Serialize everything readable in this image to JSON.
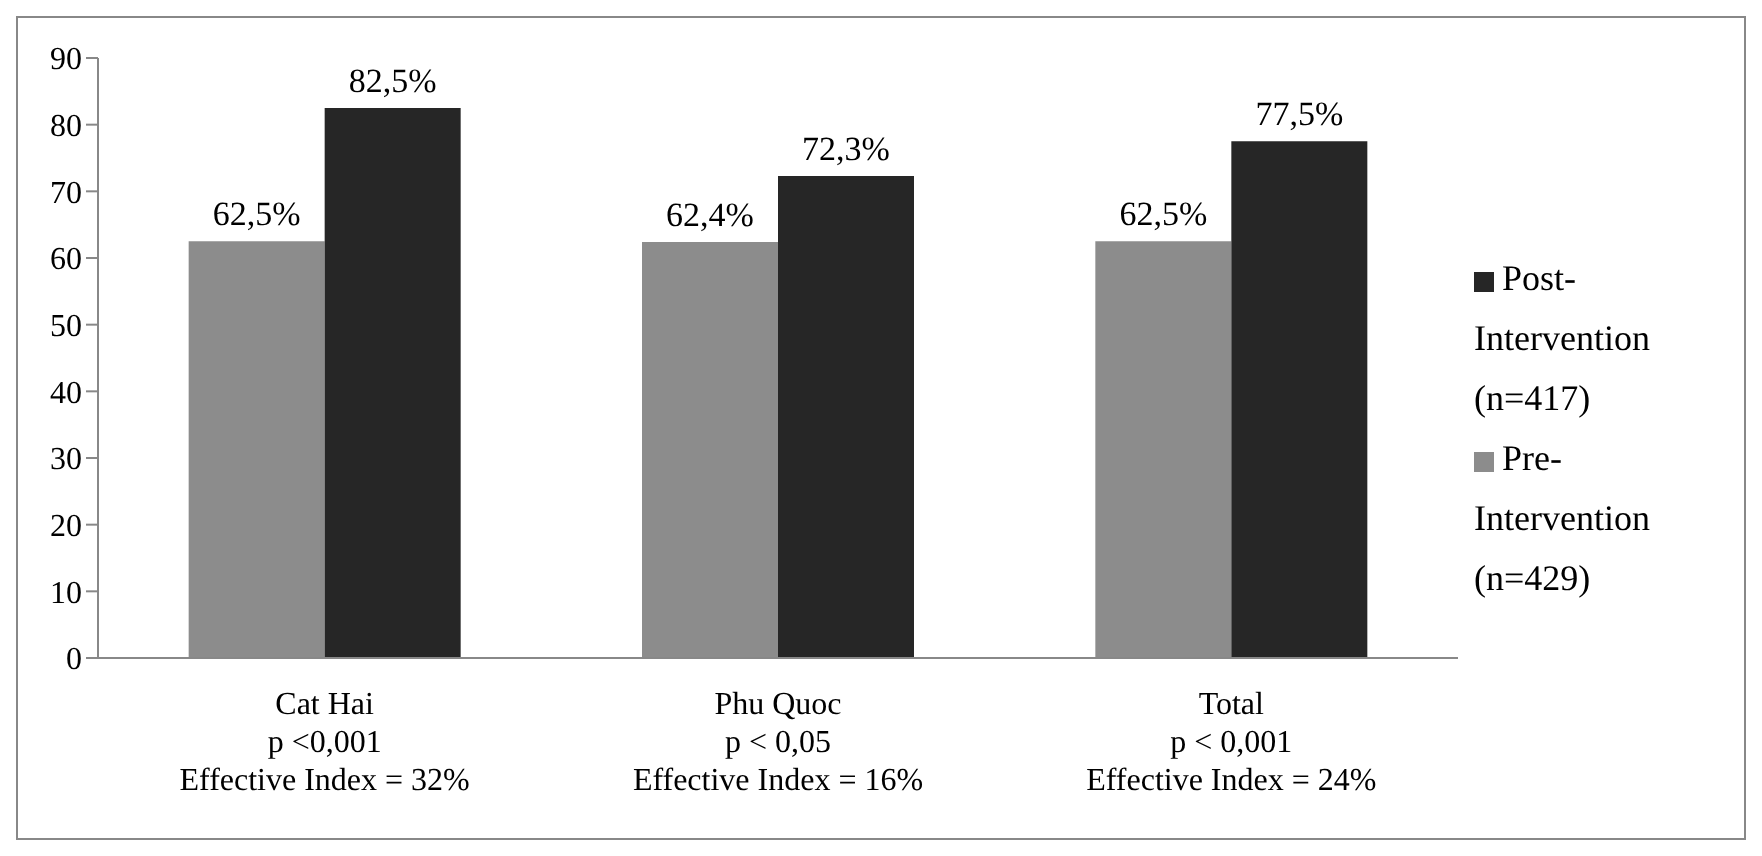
{
  "chart_data": {
    "type": "bar",
    "categories": [
      "Cat Hai\np <0,001\nEffective Index = 32%",
      "Phu Quoc\np < 0,05\nEffective Index = 16%",
      "Total\np < 0,001\nEffective Index = 24%"
    ],
    "series": [
      {
        "name": "Pre-Intervention (n=429)",
        "color": "#8c8c8c",
        "values": [
          62.5,
          62.4,
          62.5
        ],
        "value_labels": [
          "62,5%",
          "62,4%",
          "62,5%"
        ]
      },
      {
        "name": "Post-Intervention (n=417)",
        "color": "#262626",
        "values": [
          82.5,
          72.3,
          77.5
        ],
        "value_labels": [
          "82,5%",
          "72,3%",
          "77,5%"
        ]
      }
    ],
    "ylim": [
      0,
      90
    ],
    "yticks": [
      0,
      10,
      20,
      30,
      40,
      50,
      60,
      70,
      80,
      90
    ],
    "grid": false,
    "legend": "right"
  }
}
